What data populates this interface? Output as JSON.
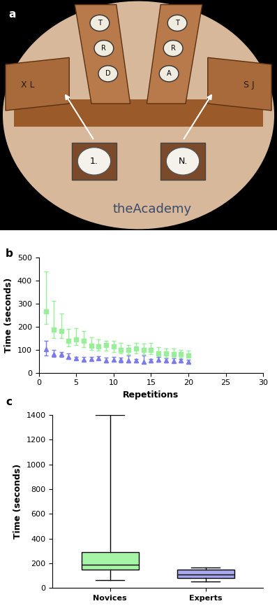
{
  "photo": {
    "panel_label": "a",
    "left_box": "X L",
    "left_board": [
      "T",
      "R",
      "D"
    ],
    "right_board": [
      "T",
      "R",
      "A"
    ],
    "right_box": "S J",
    "insets": [
      "1.",
      "N."
    ],
    "logo": "theAcademy"
  },
  "chart_data": [
    {
      "type": "scatter",
      "panel_label": "b",
      "x_label": "Repetitions",
      "y_label": "Time (seconds)",
      "x": [
        1,
        2,
        3,
        4,
        5,
        6,
        7,
        8,
        9,
        10,
        11,
        12,
        13,
        14,
        15,
        16,
        17,
        18,
        19,
        20
      ],
      "series": [
        {
          "color": "#99ee99",
          "marker": "square",
          "values": [
            265,
            188,
            182,
            140,
            145,
            138,
            118,
            115,
            120,
            115,
            100,
            100,
            105,
            100,
            100,
            85,
            85,
            82,
            80,
            75
          ],
          "lower": [
            210,
            150,
            150,
            115,
            120,
            110,
            98,
            95,
            95,
            90,
            85,
            80,
            85,
            82,
            80,
            70,
            70,
            68,
            65,
            65
          ],
          "upper": [
            440,
            312,
            258,
            190,
            192,
            182,
            155,
            145,
            140,
            140,
            130,
            120,
            130,
            125,
            130,
            110,
            105,
            105,
            100,
            95
          ]
        },
        {
          "color": "#7b7bea",
          "marker": "triangle",
          "values": [
            103,
            80,
            80,
            70,
            62,
            58,
            60,
            62,
            52,
            58,
            55,
            53,
            52,
            48,
            53,
            55,
            52,
            50,
            52,
            48
          ],
          "lower": [
            75,
            70,
            68,
            60,
            55,
            52,
            52,
            55,
            45,
            50,
            45,
            45,
            45,
            40,
            45,
            48,
            45,
            45,
            45,
            40
          ],
          "upper": [
            140,
            100,
            90,
            85,
            70,
            68,
            70,
            72,
            65,
            70,
            65,
            75,
            60,
            75,
            60,
            68,
            62,
            62,
            60,
            55
          ]
        }
      ],
      "xlim": [
        0,
        30
      ],
      "xticks": [
        0,
        5,
        10,
        15,
        20,
        25,
        30
      ],
      "ylim": [
        0,
        500
      ],
      "yticks": [
        0,
        100,
        200,
        300,
        400,
        500
      ]
    },
    {
      "type": "box",
      "panel_label": "c",
      "y_label": "Time (seconds)",
      "categories": [
        "Novices",
        "Experts"
      ],
      "colors": [
        "#a6f5a6",
        "#a8a8f0"
      ],
      "min": [
        65,
        50
      ],
      "q1": [
        145,
        80
      ],
      "median": [
        185,
        110
      ],
      "q3": [
        290,
        145
      ],
      "max": [
        1400,
        165
      ],
      "ylim": [
        0,
        1400
      ],
      "yticks": [
        0,
        200,
        400,
        600,
        800,
        1000,
        1200,
        1400
      ]
    }
  ]
}
